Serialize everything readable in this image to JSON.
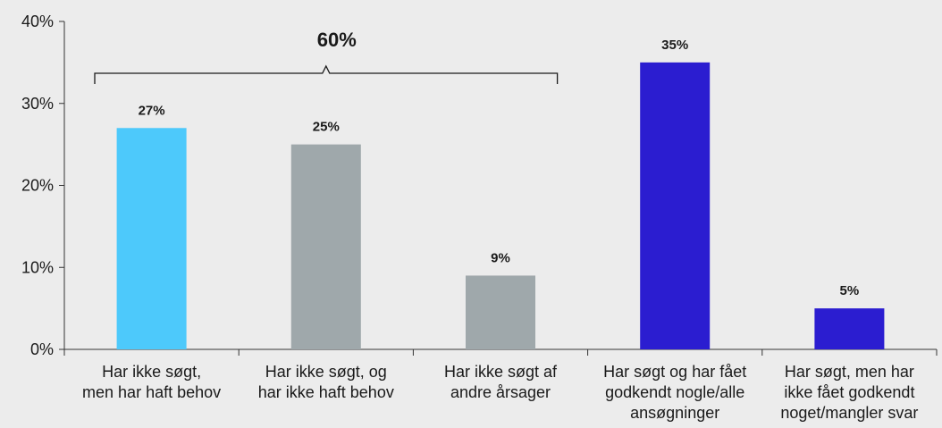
{
  "chart_data": {
    "type": "bar",
    "categories": [
      [
        "Har ikke søgt,",
        "men har haft behov"
      ],
      [
        "Har ikke søgt, og",
        "har ikke haft behov"
      ],
      [
        "Har ikke søgt af",
        "andre årsager"
      ],
      [
        "Har søgt og har fået",
        "godkendt nogle/alle",
        "ansøgninger"
      ],
      [
        "Har søgt, men har",
        "ikke fået godkendt",
        "noget/mangler svar"
      ]
    ],
    "values": [
      27,
      25,
      9,
      35,
      5
    ],
    "value_labels": [
      "27%",
      "25%",
      "9%",
      "35%",
      "5%"
    ],
    "colors": [
      "#4dc9fb",
      "#9fa8ab",
      "#9fa8ab",
      "#2b1dd0",
      "#2b1dd0"
    ],
    "ylim": [
      0,
      40
    ],
    "yticks": [
      0,
      10,
      20,
      30,
      40
    ],
    "ytick_labels": [
      "0%",
      "10%",
      "20%",
      "30%",
      "40%"
    ],
    "title": "",
    "xlabel": "",
    "ylabel": "",
    "grid": false,
    "bracket": {
      "label": "60%",
      "from_category": 0,
      "to_category": 2
    }
  }
}
